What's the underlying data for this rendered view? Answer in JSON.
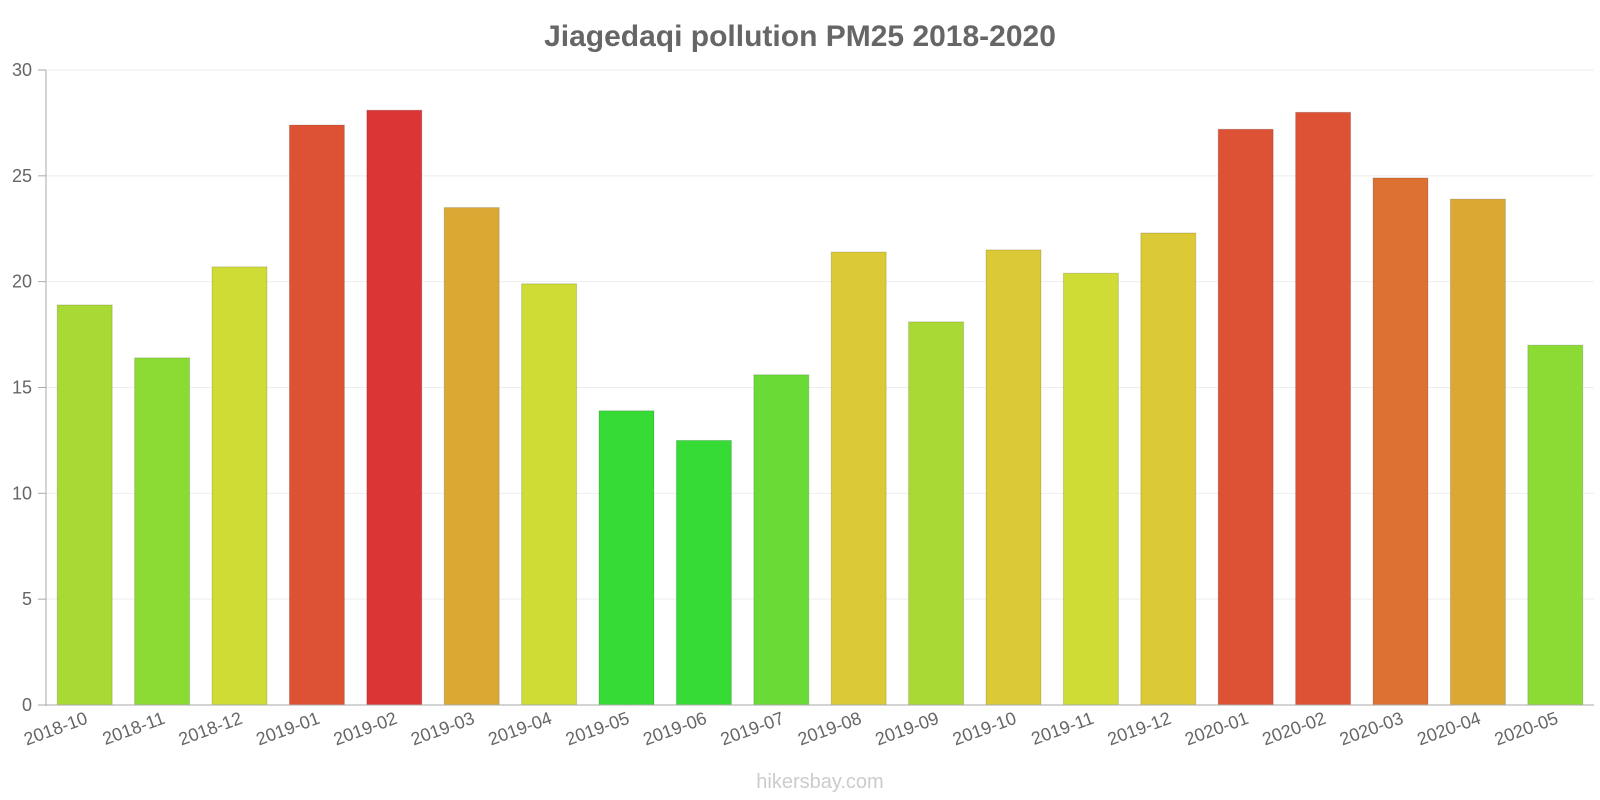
{
  "chart_data": {
    "type": "bar",
    "title": "Jiagedaqi pollution PM25 2018-2020",
    "xlabel": "",
    "ylabel": "",
    "ylim": [
      0,
      30
    ],
    "yticks": [
      "0",
      "5",
      "10",
      "15",
      "20",
      "25",
      "30"
    ],
    "categories": [
      "2018-10",
      "2018-11",
      "2018-12",
      "2019-01",
      "2019-02",
      "2019-03",
      "2019-04",
      "2019-05",
      "2019-06",
      "2019-07",
      "2019-08",
      "2019-09",
      "2019-10",
      "2019-11",
      "2019-12",
      "2020-01",
      "2020-02",
      "2020-03",
      "2020-04",
      "2020-05"
    ],
    "values": [
      18.9,
      16.4,
      20.7,
      27.4,
      28.1,
      23.5,
      19.9,
      13.9,
      12.5,
      15.6,
      21.4,
      18.1,
      21.5,
      20.4,
      22.3,
      27.2,
      28.0,
      24.9,
      23.9,
      17.0
    ],
    "colors": [
      "#a8d934",
      "#8cdb34",
      "#cfdc35",
      "#dd5234",
      "#dc3535",
      "#dba834",
      "#cfdc35",
      "#36db36",
      "#36db36",
      "#6adb36",
      "#dbc935",
      "#a8d934",
      "#dbc935",
      "#cfdc35",
      "#dbc935",
      "#dd5234",
      "#dd5234",
      "#dd7134",
      "#dba834",
      "#8cdb34"
    ],
    "grid": true,
    "legend": "none",
    "footer": "hikersbay.com"
  }
}
